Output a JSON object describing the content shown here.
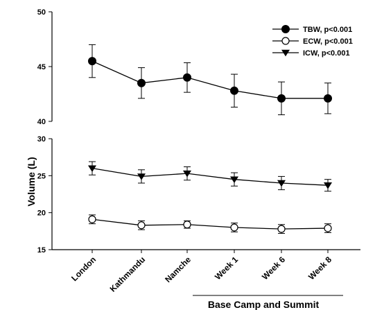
{
  "chart_data": {
    "type": "line",
    "ylabel": "Volume (L)",
    "categories": [
      "London",
      "Kathmandu",
      "Namche",
      "Week 1",
      "Week 6",
      "Week 8"
    ],
    "group_label": "Base Camp and Summit",
    "panels": [
      {
        "name": "upper",
        "ylim": [
          40,
          50
        ],
        "yticks": [
          40,
          45,
          50
        ]
      },
      {
        "name": "lower",
        "ylim": [
          15,
          30
        ],
        "yticks": [
          15,
          20,
          25,
          30
        ]
      }
    ],
    "series": [
      {
        "name": "TBW, p<0.001",
        "marker": "filled-circle",
        "panel": "upper",
        "values": [
          45.5,
          43.5,
          44.0,
          42.8,
          42.1,
          42.1
        ],
        "errors": [
          1.5,
          1.4,
          1.35,
          1.5,
          1.5,
          1.4
        ]
      },
      {
        "name": "ECW, p<0.001",
        "marker": "open-circle",
        "panel": "lower",
        "values": [
          19.1,
          18.3,
          18.4,
          18.0,
          17.8,
          17.9
        ],
        "errors": [
          0.6,
          0.6,
          0.5,
          0.6,
          0.6,
          0.6
        ]
      },
      {
        "name": "ICW, p<0.001",
        "marker": "filled-triangle-down",
        "panel": "lower",
        "values": [
          26.0,
          24.9,
          25.3,
          24.5,
          24.0,
          23.7
        ],
        "errors": [
          0.9,
          0.9,
          0.9,
          0.9,
          0.9,
          0.8
        ]
      }
    ],
    "legend_position": "top-right"
  }
}
